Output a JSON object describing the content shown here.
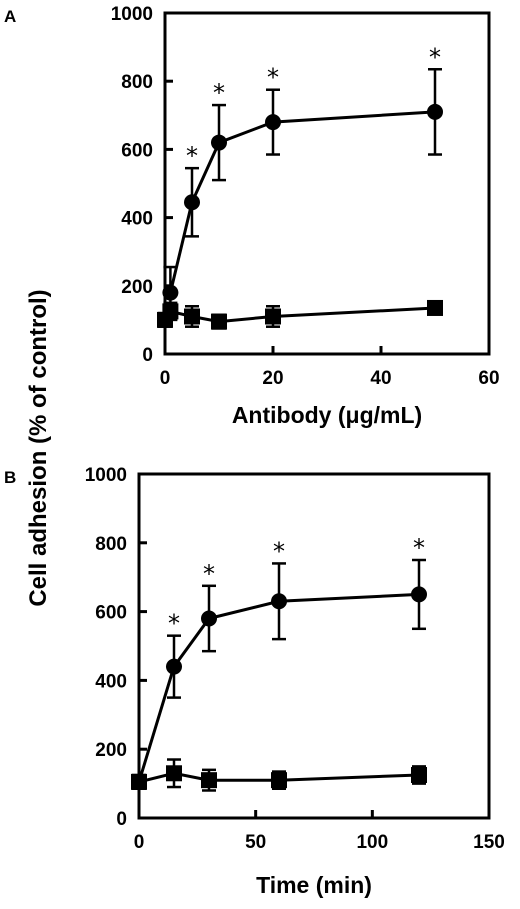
{
  "figure": {
    "shared_ylabel": "Cell adhesion (% of control)"
  },
  "chart_data": [
    {
      "panel": "A",
      "type": "line",
      "xlabel": "Antibody (μg/mL)",
      "ylabel": "Cell adhesion (% of control)",
      "xlim": [
        0,
        60
      ],
      "ylim": [
        0,
        1000
      ],
      "xticks": [
        0,
        20,
        40,
        60
      ],
      "yticks": [
        0,
        200,
        400,
        600,
        800,
        1000
      ],
      "grid": false,
      "series": [
        {
          "marker": "circle",
          "x": [
            1,
            5,
            10,
            20,
            50
          ],
          "y": [
            180,
            445,
            620,
            680,
            710
          ],
          "err": [
            75,
            100,
            110,
            95,
            125
          ],
          "significant": [
            false,
            true,
            true,
            true,
            true
          ]
        },
        {
          "marker": "square",
          "x": [
            0,
            1,
            5,
            10,
            20,
            50
          ],
          "y": [
            100,
            125,
            110,
            95,
            110,
            135
          ],
          "err": [
            20,
            25,
            30,
            20,
            30,
            15
          ],
          "significant": [
            false,
            false,
            false,
            false,
            false,
            false
          ]
        }
      ],
      "annotation_symbol": "*"
    },
    {
      "panel": "B",
      "type": "line",
      "xlabel": "Time (min)",
      "ylabel": "Cell adhesion (% of control)",
      "xlim": [
        0,
        150
      ],
      "ylim": [
        0,
        1000
      ],
      "xticks": [
        0,
        50,
        100,
        150
      ],
      "yticks": [
        0,
        200,
        400,
        600,
        800,
        1000
      ],
      "grid": false,
      "series": [
        {
          "marker": "circle",
          "x": [
            0,
            15,
            30,
            60,
            120
          ],
          "y": [
            105,
            440,
            580,
            630,
            650
          ],
          "err": [
            15,
            90,
            95,
            110,
            100
          ],
          "significant": [
            false,
            true,
            true,
            true,
            true
          ]
        },
        {
          "marker": "square",
          "x": [
            0,
            15,
            30,
            60,
            120
          ],
          "y": [
            105,
            130,
            110,
            110,
            125
          ],
          "err": [
            20,
            40,
            30,
            25,
            25
          ],
          "significant": [
            false,
            false,
            false,
            false,
            false
          ]
        }
      ],
      "annotation_symbol": "*"
    }
  ]
}
